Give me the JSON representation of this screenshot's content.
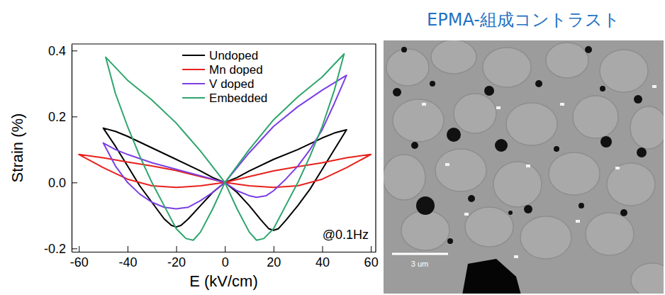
{
  "chart_data": {
    "type": "line",
    "x_label": "E (kV/cm)",
    "y_label": "Strain (%)",
    "annotation": "@0.1Hz",
    "xlim": [
      -63,
      62
    ],
    "ylim": [
      -0.21,
      0.42
    ],
    "xticks": [
      -60,
      -40,
      -20,
      0,
      20,
      40,
      60
    ],
    "yticks": [
      -0.2,
      {
        "value": 0,
        "label": "0.0"
      },
      0.2,
      0.4
    ],
    "legend": "upper center",
    "series": [
      {
        "name": "Undoped",
        "color": "#000000",
        "x": [
          0,
          5,
          10,
          15,
          18,
          20,
          22,
          25,
          30,
          35,
          40,
          45,
          50,
          45,
          40,
          30,
          20,
          10,
          5,
          0,
          -5,
          -10,
          -15,
          -18,
          -20,
          -22,
          -25,
          -30,
          -35,
          -40,
          -45,
          -50,
          -45,
          -40,
          -30,
          -20,
          -10,
          -5,
          0
        ],
        "values": [
          0,
          -0.03,
          -0.07,
          -0.115,
          -0.14,
          -0.145,
          -0.14,
          -0.115,
          -0.07,
          -0.02,
          0.04,
          0.1,
          0.16,
          0.15,
          0.135,
          0.1,
          0.07,
          0.035,
          0.015,
          0,
          -0.03,
          -0.07,
          -0.11,
          -0.13,
          -0.135,
          -0.13,
          -0.11,
          -0.06,
          -0.01,
          0.05,
          0.11,
          0.165,
          0.155,
          0.14,
          0.105,
          0.07,
          0.035,
          0.015,
          0
        ]
      },
      {
        "name": "Mn doped",
        "color": "#e8211c",
        "x": [
          0,
          10,
          20,
          30,
          40,
          50,
          60,
          50,
          40,
          30,
          20,
          10,
          0,
          -10,
          -20,
          -30,
          -40,
          -50,
          -60,
          -50,
          -40,
          -30,
          -20,
          -10,
          0
        ],
        "values": [
          0,
          -0.01,
          -0.015,
          -0.01,
          0.01,
          0.045,
          0.085,
          0.075,
          0.06,
          0.048,
          0.035,
          0.018,
          0,
          -0.01,
          -0.015,
          -0.01,
          0.01,
          0.045,
          0.085,
          0.075,
          0.062,
          0.05,
          0.036,
          0.018,
          0
        ]
      },
      {
        "name": "V doped",
        "color": "#7b3fe4",
        "x": [
          0,
          5,
          10,
          13,
          17,
          20,
          25,
          30,
          35,
          40,
          45,
          50,
          40,
          30,
          20,
          10,
          0,
          -5,
          -10,
          -15,
          -20,
          -25,
          -30,
          -35,
          -40,
          -45,
          -50,
          -45,
          -40,
          -30,
          -20,
          -10,
          0
        ],
        "values": [
          0,
          -0.025,
          -0.04,
          -0.045,
          -0.04,
          -0.025,
          0.01,
          0.05,
          0.1,
          0.16,
          0.24,
          0.325,
          0.28,
          0.23,
          0.17,
          0.09,
          0,
          -0.03,
          -0.055,
          -0.075,
          -0.08,
          -0.075,
          -0.06,
          -0.035,
          0,
          0.05,
          0.12,
          0.1,
          0.085,
          0.06,
          0.04,
          0.02,
          0
        ]
      },
      {
        "name": "Embedded",
        "color": "#2ea56c",
        "x": [
          0,
          5,
          10,
          13,
          16,
          20,
          25,
          30,
          35,
          40,
          45,
          49,
          40,
          30,
          20,
          10,
          0,
          -5,
          -10,
          -13,
          -16,
          -20,
          -25,
          -30,
          -35,
          -40,
          -45,
          -49,
          -40,
          -30,
          -20,
          -10,
          0
        ],
        "values": [
          0,
          -0.08,
          -0.15,
          -0.175,
          -0.17,
          -0.14,
          -0.07,
          0,
          0.08,
          0.17,
          0.28,
          0.39,
          0.32,
          0.26,
          0.19,
          0.1,
          0,
          -0.08,
          -0.15,
          -0.175,
          -0.17,
          -0.14,
          -0.07,
          0,
          0.08,
          0.17,
          0.27,
          0.38,
          0.31,
          0.25,
          0.18,
          0.095,
          0
        ]
      }
    ]
  },
  "image_panel": {
    "title": "EPMA-組成コントラスト",
    "scale_bar_label": "3 um"
  }
}
